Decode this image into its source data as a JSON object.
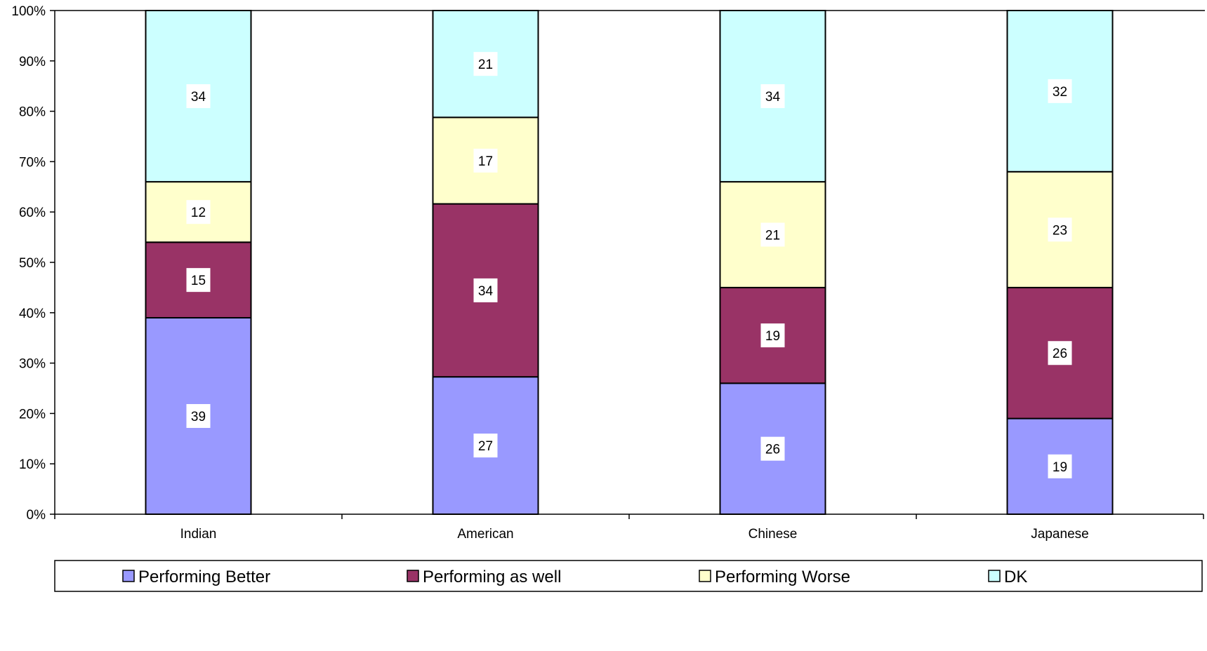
{
  "chart_data": {
    "type": "bar",
    "stacked": true,
    "percent_stacked": true,
    "categories": [
      "Indian",
      "American",
      "Chinese",
      "Japanese"
    ],
    "series": [
      {
        "name": "Performing Better",
        "color": "#9999ff",
        "values": [
          39,
          27,
          26,
          19
        ]
      },
      {
        "name": "Performing as well",
        "color": "#993366",
        "values": [
          15,
          34,
          19,
          26
        ]
      },
      {
        "name": "Performing Worse",
        "color": "#ffffcc",
        "values": [
          12,
          17,
          21,
          23
        ]
      },
      {
        "name": "DK",
        "color": "#ccffff",
        "values": [
          34,
          21,
          34,
          32
        ]
      }
    ],
    "y_ticks": [
      "0%",
      "10%",
      "20%",
      "30%",
      "40%",
      "50%",
      "60%",
      "70%",
      "80%",
      "90%",
      "100%"
    ],
    "ylim": [
      0,
      100
    ],
    "grid": false,
    "legend_position": "bottom",
    "title": "",
    "xlabel": "",
    "ylabel": ""
  }
}
